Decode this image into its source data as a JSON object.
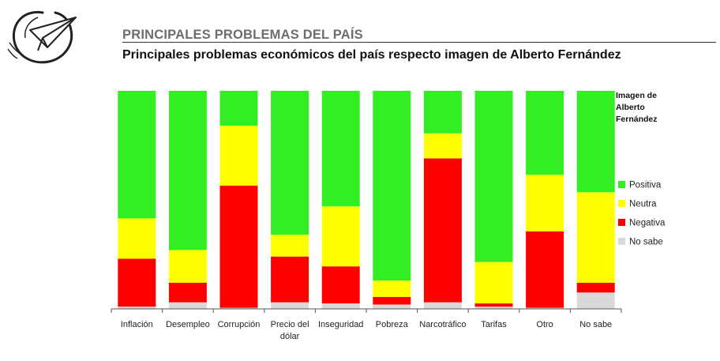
{
  "header": {
    "section_title": "PRINCIPALES PROBLEMAS DEL PAÍS",
    "chart_title": "Principales problemas económicos del país respecto imagen de Alberto Fernández"
  },
  "icons": {
    "logo": "paper-plane-icon"
  },
  "colors": {
    "Positiva": "#33ee22",
    "Neutra": "#ffff00",
    "Negativa": "#ff0000",
    "No sabe": "#d9d9d9"
  },
  "chart_data": {
    "type": "bar",
    "stacked": true,
    "percent_stacked": true,
    "categories": [
      "Inflación",
      "Desempleo",
      "Corrupción",
      "Precio del dólar",
      "Inseguridad",
      "Pobreza",
      "Narcotráfico",
      "Tarifas",
      "Otro",
      "No sabe"
    ],
    "category_lines": [
      [
        "Inflación"
      ],
      [
        "Desempleo"
      ],
      [
        "Corrupción"
      ],
      [
        "Precio del",
        "dólar"
      ],
      [
        "Inseguridad"
      ],
      [
        "Pobreza"
      ],
      [
        "Narcotráfico"
      ],
      [
        "Tarifas"
      ],
      [
        "Otro"
      ],
      [
        "No sabe"
      ]
    ],
    "legend_title": [
      "Imagen de",
      "Alberto",
      "Fernández"
    ],
    "legend_position": "right",
    "ylim": [
      0,
      100
    ],
    "series": [
      {
        "name": "No sabe",
        "values": [
          1,
          3,
          0.5,
          3,
          2.5,
          2,
          3,
          1,
          0.5,
          7.5
        ]
      },
      {
        "name": "Negativa",
        "values": [
          22,
          9,
          56,
          21,
          17,
          3.5,
          66,
          1.5,
          35,
          4.5
        ]
      },
      {
        "name": "Neutra",
        "values": [
          18.5,
          15,
          27.5,
          10,
          27.5,
          7.5,
          11.5,
          19,
          26,
          41.5
        ]
      },
      {
        "name": "Positiva",
        "values": [
          58.5,
          73,
          16,
          66,
          53,
          87,
          19.5,
          78.5,
          38.5,
          46.5
        ]
      }
    ]
  }
}
